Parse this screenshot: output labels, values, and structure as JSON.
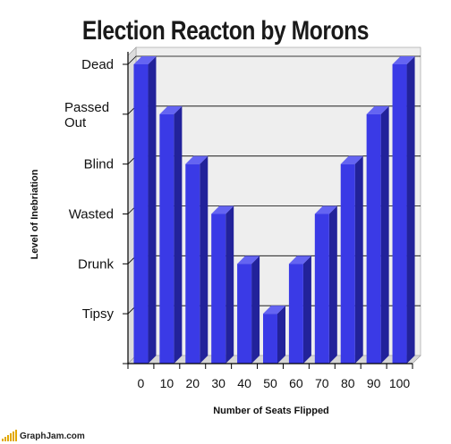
{
  "site": {
    "name": "GraphJam.com"
  },
  "colors": {
    "bar_front": "#3a3ae6",
    "bar_side": "#22229a",
    "bar_top": "#6464f2",
    "plot_bg": "#eeeeee"
  },
  "chart_data": {
    "type": "bar",
    "title": "Election Reacton by Morons",
    "xlabel": "Number of Seats Flipped",
    "ylabel": "Level of Inebriation",
    "categories": [
      "0",
      "10",
      "20",
      "30",
      "40",
      "50",
      "60",
      "70",
      "80",
      "90",
      "100"
    ],
    "y_categories": [
      "Tipsy",
      "Drunk",
      "Wasted",
      "Blind",
      "Passed Out",
      "Dead"
    ],
    "values": [
      6,
      5,
      4,
      3,
      2,
      1,
      2,
      3,
      4,
      5,
      6
    ],
    "ylim": [
      0,
      6
    ],
    "grid": true
  }
}
